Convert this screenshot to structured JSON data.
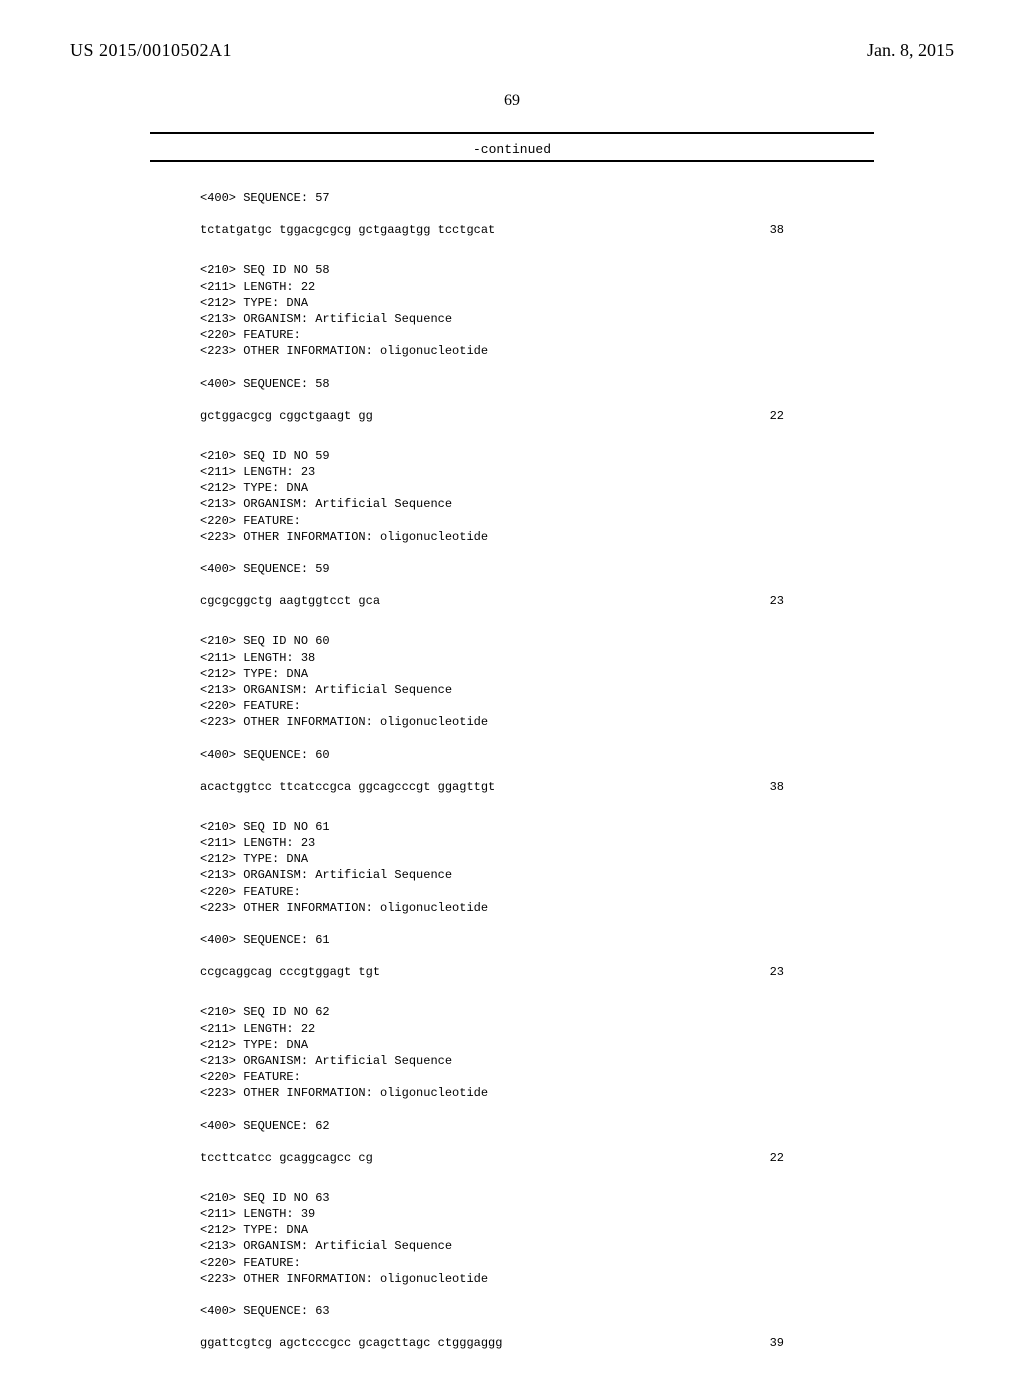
{
  "header": {
    "pub_number": "US 2015/0010502A1",
    "pub_date": "Jan. 8, 2015"
  },
  "page_number": "69",
  "continued": "-continued",
  "blocks": [
    {
      "lead_meta": [
        "<400> SEQUENCE: 57"
      ],
      "seq": "tctatgatgc tggacgcgcg gctgaagtgg tcctgcat",
      "len": "38",
      "meta": [
        "<210> SEQ ID NO 58",
        "<211> LENGTH: 22",
        "<212> TYPE: DNA",
        "<213> ORGANISM: Artificial Sequence",
        "<220> FEATURE:",
        "<223> OTHER INFORMATION: oligonucleotide"
      ],
      "seq_label": "<400> SEQUENCE: 58"
    },
    {
      "seq": "gctggacgcg cggctgaagt gg",
      "len": "22",
      "meta": [
        "<210> SEQ ID NO 59",
        "<211> LENGTH: 23",
        "<212> TYPE: DNA",
        "<213> ORGANISM: Artificial Sequence",
        "<220> FEATURE:",
        "<223> OTHER INFORMATION: oligonucleotide"
      ],
      "seq_label": "<400> SEQUENCE: 59"
    },
    {
      "seq": "cgcgcggctg aagtggtcct gca",
      "len": "23",
      "meta": [
        "<210> SEQ ID NO 60",
        "<211> LENGTH: 38",
        "<212> TYPE: DNA",
        "<213> ORGANISM: Artificial Sequence",
        "<220> FEATURE:",
        "<223> OTHER INFORMATION: oligonucleotide"
      ],
      "seq_label": "<400> SEQUENCE: 60"
    },
    {
      "seq": "acactggtcc ttcatccgca ggcagcccgt ggagttgt",
      "len": "38",
      "meta": [
        "<210> SEQ ID NO 61",
        "<211> LENGTH: 23",
        "<212> TYPE: DNA",
        "<213> ORGANISM: Artificial Sequence",
        "<220> FEATURE:",
        "<223> OTHER INFORMATION: oligonucleotide"
      ],
      "seq_label": "<400> SEQUENCE: 61"
    },
    {
      "seq": "ccgcaggcag cccgtggagt tgt",
      "len": "23",
      "meta": [
        "<210> SEQ ID NO 62",
        "<211> LENGTH: 22",
        "<212> TYPE: DNA",
        "<213> ORGANISM: Artificial Sequence",
        "<220> FEATURE:",
        "<223> OTHER INFORMATION: oligonucleotide"
      ],
      "seq_label": "<400> SEQUENCE: 62"
    },
    {
      "seq": "tccttcatcc gcaggcagcc cg",
      "len": "22",
      "meta": [
        "<210> SEQ ID NO 63",
        "<211> LENGTH: 39",
        "<212> TYPE: DNA",
        "<213> ORGANISM: Artificial Sequence",
        "<220> FEATURE:",
        "<223> OTHER INFORMATION: oligonucleotide"
      ],
      "seq_label": "<400> SEQUENCE: 63"
    },
    {
      "seq": "ggattcgtcg agctcccgcc gcagcttagc ctgggaggg",
      "len": "39"
    }
  ]
}
